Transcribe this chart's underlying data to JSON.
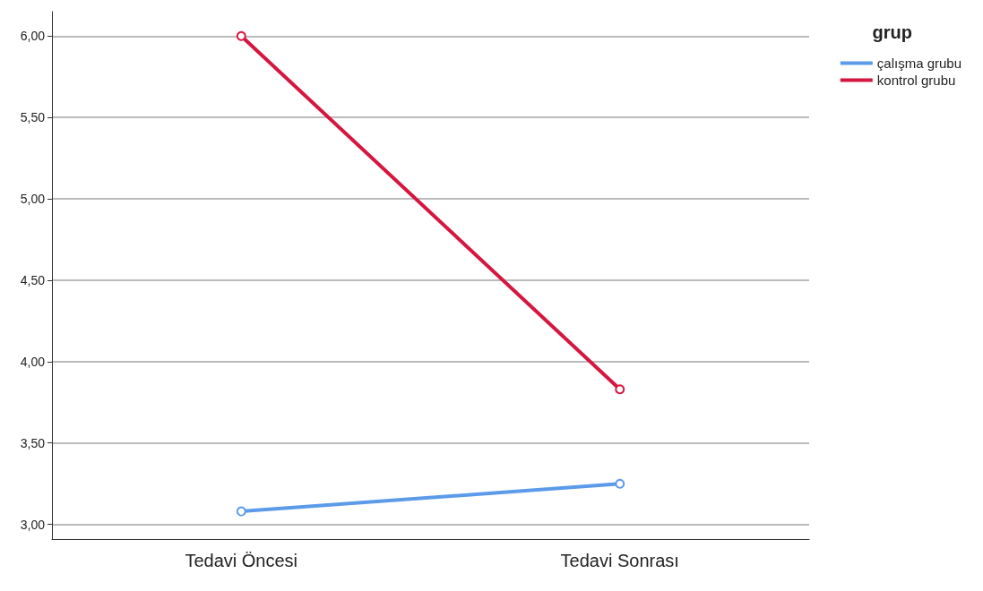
{
  "chart_data": {
    "type": "line",
    "categories": [
      "Tedavi Öncesi",
      "Tedavi Sonrası"
    ],
    "series": [
      {
        "name": "çalışma grubu",
        "color": "#5b9bea",
        "values": [
          3.08,
          3.25
        ]
      },
      {
        "name": "kontrol grubu",
        "color": "#d5173f",
        "values": [
          6.0,
          3.83
        ]
      }
    ],
    "ylim": [
      2.91,
      6.15
    ],
    "yticks": [
      {
        "value": 3,
        "label": "3,00"
      },
      {
        "value": 3.5,
        "label": "3,50"
      },
      {
        "value": 4,
        "label": "4,00"
      },
      {
        "value": 4.5,
        "label": "4,50"
      },
      {
        "value": 5,
        "label": "5,00"
      },
      {
        "value": 5.5,
        "label": "5,50"
      },
      {
        "value": 6,
        "label": "6,00"
      }
    ],
    "grid": "y",
    "legend": "top right",
    "legend_title": "grup",
    "marker": "circle",
    "line_style": "solid"
  }
}
